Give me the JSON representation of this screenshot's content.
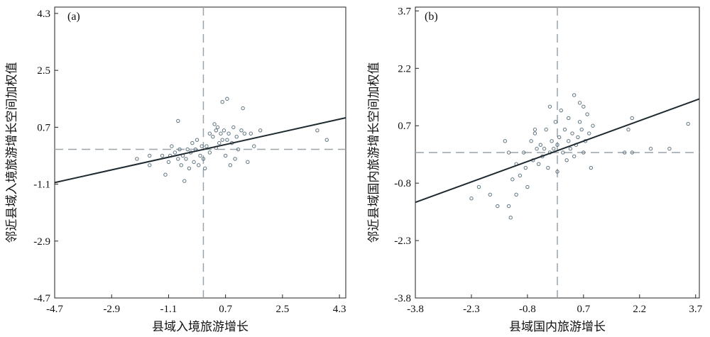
{
  "chart_data": [
    {
      "type": "scatter",
      "panel_label": "(a)",
      "xlabel": "县域入境旅游增长",
      "ylabel": "邻近县域入境旅游增长空间加权值",
      "xlim": [
        -4.7,
        4.5
      ],
      "ylim": [
        -4.7,
        4.5
      ],
      "xticks": [
        "-4.7",
        "-2.9",
        "-1.1",
        "0.7",
        "2.5",
        "4.3"
      ],
      "yticks": [
        "-4.7",
        "-2.9",
        "-1.1",
        "0.7",
        "2.5",
        "4.3"
      ],
      "reference_lines": {
        "x": 0,
        "y": 0
      },
      "fit_line": {
        "x": [
          -4.7,
          4.5
        ],
        "y": [
          -1.05,
          1.0
        ]
      },
      "points": [
        [
          -2.1,
          -0.3
        ],
        [
          -1.7,
          -0.2
        ],
        [
          -1.7,
          -0.5
        ],
        [
          -1.3,
          -0.2
        ],
        [
          -1.2,
          -0.8
        ],
        [
          -1.1,
          -0.4
        ],
        [
          -1.05,
          -0.2
        ],
        [
          -1.0,
          0.1
        ],
        [
          -0.9,
          -0.1
        ],
        [
          -0.8,
          -0.3
        ],
        [
          -0.75,
          0.0
        ],
        [
          -0.7,
          -0.5
        ],
        [
          -0.65,
          -0.2
        ],
        [
          -0.6,
          -1.0
        ],
        [
          -0.55,
          -0.3
        ],
        [
          -0.5,
          0.0
        ],
        [
          -0.45,
          -0.6
        ],
        [
          -0.4,
          -0.1
        ],
        [
          -0.35,
          0.2
        ],
        [
          -0.3,
          -0.4
        ],
        [
          -0.25,
          0.0
        ],
        [
          -0.2,
          0.3
        ],
        [
          -0.15,
          -0.5
        ],
        [
          -0.1,
          -0.2
        ],
        [
          -0.05,
          0.1
        ],
        [
          0.0,
          -0.3
        ],
        [
          0.05,
          -0.6
        ],
        [
          -0.8,
          0.9
        ],
        [
          0.1,
          0.1
        ],
        [
          0.2,
          0.5
        ],
        [
          0.3,
          0.4
        ],
        [
          0.35,
          0.8
        ],
        [
          0.4,
          0.6
        ],
        [
          0.45,
          0.7
        ],
        [
          0.5,
          0.2
        ],
        [
          0.55,
          0.5
        ],
        [
          0.6,
          0.3
        ],
        [
          0.65,
          0.6
        ],
        [
          0.7,
          -0.2
        ],
        [
          0.75,
          0.3
        ],
        [
          0.8,
          0.5
        ],
        [
          0.85,
          -0.5
        ],
        [
          0.9,
          0.2
        ],
        [
          0.95,
          0.7
        ],
        [
          1.0,
          -0.3
        ],
        [
          1.05,
          0.4
        ],
        [
          1.1,
          0.0
        ],
        [
          1.2,
          0.6
        ],
        [
          1.3,
          0.5
        ],
        [
          1.4,
          -0.4
        ],
        [
          1.5,
          0.5
        ],
        [
          1.6,
          0.1
        ],
        [
          0.6,
          1.5
        ],
        [
          0.75,
          1.6
        ],
        [
          1.25,
          1.3
        ],
        [
          1.8,
          0.6
        ],
        [
          3.6,
          0.6
        ],
        [
          3.9,
          0.3
        ],
        [
          0.2,
          -0.1
        ],
        [
          0.4,
          0.05
        ]
      ]
    },
    {
      "type": "scatter",
      "panel_label": "(b)",
      "xlabel": "县域国内旅游增长",
      "ylabel": "邻近县域国内旅游增长空间加权值",
      "xlim": [
        -3.8,
        3.8
      ],
      "ylim": [
        -3.8,
        3.8
      ],
      "xticks": [
        "-3.8",
        "-2.3",
        "-0.8",
        "0.7",
        "2.2",
        "3.7"
      ],
      "yticks": [
        "-3.8",
        "-2.3",
        "-0.8",
        "0.7",
        "2.2",
        "3.7"
      ],
      "reference_lines": {
        "x": 0,
        "y": 0
      },
      "fit_line": {
        "x": [
          -3.8,
          3.8
        ],
        "y": [
          -1.3,
          1.4
        ]
      },
      "points": [
        [
          -2.3,
          -1.2
        ],
        [
          -2.1,
          -0.9
        ],
        [
          -1.8,
          -1.1
        ],
        [
          -1.6,
          -1.4
        ],
        [
          -1.3,
          -1.4
        ],
        [
          -1.25,
          -1.7
        ],
        [
          -1.2,
          -0.7
        ],
        [
          -1.1,
          -1.1
        ],
        [
          -1.4,
          0.3
        ],
        [
          -1.3,
          0.0
        ],
        [
          -1.1,
          -0.3
        ],
        [
          -1.0,
          -0.6
        ],
        [
          -0.9,
          0.0
        ],
        [
          -0.85,
          -0.4
        ],
        [
          -0.8,
          -0.9
        ],
        [
          -0.7,
          0.3
        ],
        [
          -0.65,
          -0.2
        ],
        [
          -0.6,
          0.5
        ],
        [
          -0.55,
          0.1
        ],
        [
          -0.5,
          -0.3
        ],
        [
          -0.45,
          0.2
        ],
        [
          -0.4,
          -0.1
        ],
        [
          -0.35,
          0.1
        ],
        [
          -0.3,
          0.6
        ],
        [
          -0.25,
          -0.4
        ],
        [
          -0.2,
          0.0
        ],
        [
          -0.15,
          0.3
        ],
        [
          -0.1,
          0.1
        ],
        [
          -0.05,
          0.8
        ],
        [
          0.0,
          0.2
        ],
        [
          0.05,
          0.4
        ],
        [
          0.1,
          1.1
        ],
        [
          0.15,
          0.0
        ],
        [
          0.2,
          0.6
        ],
        [
          0.25,
          -0.2
        ],
        [
          0.3,
          0.3
        ],
        [
          0.35,
          0.1
        ],
        [
          0.4,
          0.5
        ],
        [
          0.45,
          -0.1
        ],
        [
          0.5,
          0.2
        ],
        [
          0.55,
          0.4
        ],
        [
          0.6,
          0.8
        ],
        [
          0.65,
          0.6
        ],
        [
          0.7,
          0.0
        ],
        [
          0.75,
          0.3
        ],
        [
          0.8,
          1.0
        ],
        [
          0.85,
          0.5
        ],
        [
          0.9,
          -0.4
        ],
        [
          0.95,
          0.7
        ],
        [
          0.45,
          1.5
        ],
        [
          0.7,
          1.2
        ],
        [
          1.9,
          0.6
        ],
        [
          2.0,
          0.9
        ],
        [
          2.0,
          0.0
        ],
        [
          1.8,
          0.0
        ],
        [
          2.5,
          0.1
        ],
        [
          3.0,
          0.1
        ],
        [
          3.5,
          0.75
        ],
        [
          0.0,
          -0.5
        ],
        [
          -0.6,
          0.6
        ],
        [
          0.3,
          0.9
        ],
        [
          -0.2,
          1.2
        ],
        [
          0.6,
          1.3
        ]
      ]
    }
  ]
}
